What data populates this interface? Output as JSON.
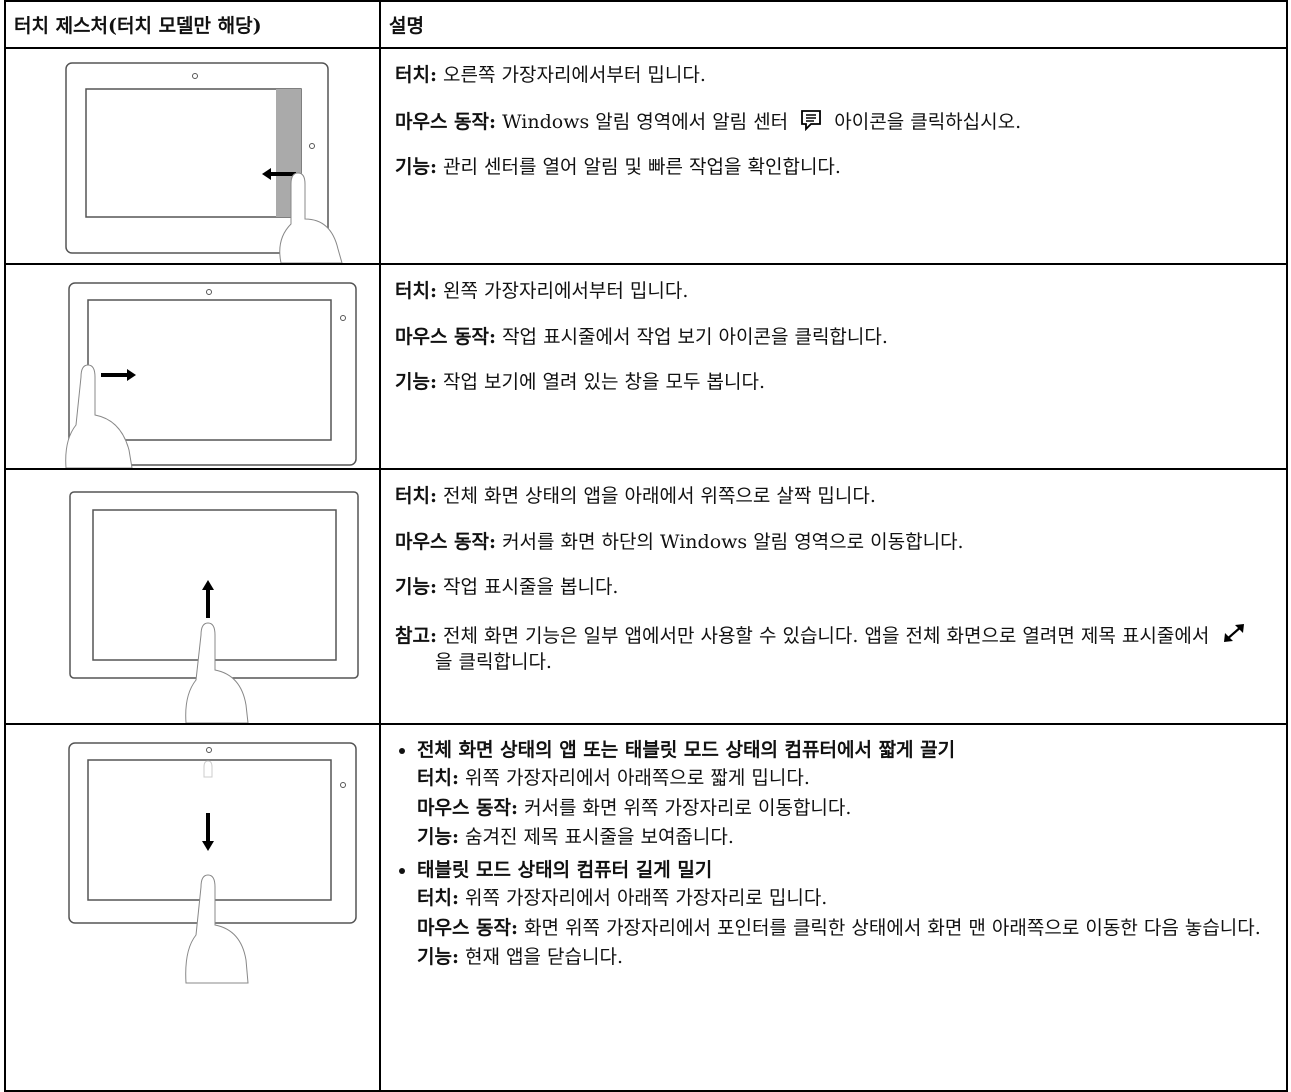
{
  "table": {
    "header": [
      "터치 제스처(터치 모델만 해당)",
      "설명"
    ],
    "rows": [
      {
        "items": [
          {
            "label": "터치:",
            "text": "오른쪽 가장자리에서부터 밉니다."
          },
          {
            "label": "마우스 동작:",
            "text": "Windows 알림 영역에서 알림 센터",
            "text_after": "아이콘을 클릭하십시오."
          },
          {
            "label": "기능:",
            "text": "관리 센터를 열어 알림 및 빠른 작업을 확인합니다."
          }
        ]
      },
      {
        "items": [
          {
            "label": "터치:",
            "text": "왼쪽 가장자리에서부터 밉니다."
          },
          {
            "label": "마우스 동작:",
            "text": "작업 표시줄에서 작업 보기 아이콘을 클릭합니다."
          },
          {
            "label": "기능:",
            "text": "작업 보기에 열려 있는 창을 모두 봅니다."
          }
        ]
      },
      {
        "items": [
          {
            "label": "터치:",
            "text": "전체 화면 상태의 앱을 아래에서 위쪽으로 살짝 밉니다."
          },
          {
            "label": "마우스 동작:",
            "text": "커서를 화면 하단의 Windows 알림 영역으로 이동합니다."
          },
          {
            "label": "기능:",
            "text": "작업 표시줄을 봅니다."
          },
          {
            "label": "참고:",
            "text": "전체 화면 기능은 일부 앱에서만 사용할 수 있습니다. 앱을 전체 화면으로 열려면 제목 표시줄에서",
            "text_after": "을 클릭합니다."
          }
        ]
      },
      {
        "groups": [
          {
            "heading": "전체 화면 상태의 앱 또는 태블릿 모드 상태의 컴퓨터에서 짧게 끌기",
            "items": [
              {
                "label": "터치:",
                "text": "위쪽 가장자리에서 아래쪽으로 짧게 밉니다."
              },
              {
                "label": "마우스 동작:",
                "text": "커서를 화면 위쪽 가장자리로 이동합니다."
              },
              {
                "label": "기능:",
                "text": "숨겨진 제목 표시줄을 보여줍니다."
              }
            ]
          },
          {
            "heading": "태블릿 모드 상태의 컴퓨터 길게 밀기",
            "items": [
              {
                "label": "터치:",
                "text": "위쪽 가장자리에서 아래쪽 가장자리로 밉니다."
              },
              {
                "label": "마우스 동작:",
                "text": "화면 위쪽 가장자리에서 포인터를 클릭한 상태에서 화면 맨 아래쪽으로 이동한 다음 놓습니다."
              },
              {
                "label": "기능:",
                "text": "현재 앱을 닫습니다."
              }
            ]
          }
        ]
      }
    ]
  }
}
